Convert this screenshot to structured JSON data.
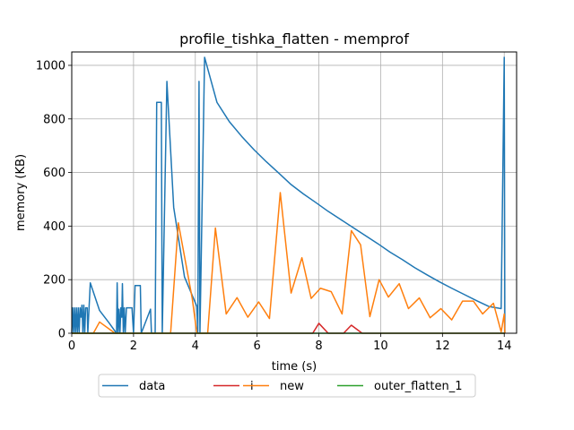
{
  "chart_data": {
    "type": "line",
    "title": "profile_tishka_flatten - memprof",
    "xlabel": "time (s)",
    "ylabel": "memory (KB)",
    "xlim": [
      0,
      14.4
    ],
    "ylim": [
      0,
      1050
    ],
    "xticks": [
      0,
      2,
      4,
      6,
      8,
      10,
      12,
      14
    ],
    "yticks": [
      0,
      200,
      400,
      600,
      800,
      1000
    ],
    "grid": true,
    "legend": "below-center",
    "series": [
      {
        "name": "data",
        "color": "#1f77b4",
        "points": [
          [
            0.0,
            0
          ],
          [
            0.03,
            95
          ],
          [
            0.06,
            0
          ],
          [
            0.09,
            95
          ],
          [
            0.12,
            0
          ],
          [
            0.15,
            95
          ],
          [
            0.18,
            0
          ],
          [
            0.21,
            95
          ],
          [
            0.24,
            0
          ],
          [
            0.27,
            95
          ],
          [
            0.3,
            60
          ],
          [
            0.33,
            105
          ],
          [
            0.36,
            0
          ],
          [
            0.39,
            105
          ],
          [
            0.42,
            0
          ],
          [
            0.45,
            95
          ],
          [
            0.5,
            95
          ],
          [
            0.52,
            0
          ],
          [
            0.6,
            188
          ],
          [
            0.9,
            85
          ],
          [
            1.2,
            40
          ],
          [
            1.45,
            0
          ],
          [
            1.47,
            188
          ],
          [
            1.5,
            0
          ],
          [
            1.53,
            90
          ],
          [
            1.56,
            0
          ],
          [
            1.59,
            95
          ],
          [
            1.62,
            60
          ],
          [
            1.64,
            185
          ],
          [
            1.67,
            0
          ],
          [
            1.7,
            95
          ],
          [
            1.73,
            0
          ],
          [
            1.77,
            95
          ],
          [
            1.95,
            95
          ],
          [
            2.0,
            0
          ],
          [
            2.05,
            178
          ],
          [
            2.22,
            178
          ],
          [
            2.25,
            0
          ],
          [
            2.55,
            90
          ],
          [
            2.58,
            0
          ],
          [
            2.7,
            0
          ],
          [
            2.75,
            862
          ],
          [
            2.9,
            862
          ],
          [
            2.93,
            0
          ],
          [
            3.08,
            940
          ],
          [
            3.3,
            470
          ],
          [
            3.65,
            210
          ],
          [
            4.05,
            100
          ],
          [
            4.08,
            0
          ],
          [
            4.12,
            940
          ],
          [
            4.15,
            0
          ],
          [
            4.3,
            1030
          ],
          [
            4.7,
            862
          ],
          [
            5.1,
            790
          ],
          [
            5.5,
            735
          ],
          [
            5.9,
            685
          ],
          [
            6.3,
            640
          ],
          [
            6.7,
            598
          ],
          [
            7.1,
            555
          ],
          [
            7.5,
            520
          ],
          [
            7.9,
            488
          ],
          [
            8.3,
            455
          ],
          [
            8.7,
            425
          ],
          [
            9.1,
            395
          ],
          [
            9.5,
            365
          ],
          [
            9.9,
            335
          ],
          [
            10.3,
            303
          ],
          [
            10.7,
            275
          ],
          [
            11.1,
            245
          ],
          [
            11.5,
            218
          ],
          [
            11.9,
            192
          ],
          [
            12.3,
            168
          ],
          [
            12.7,
            145
          ],
          [
            13.1,
            122
          ],
          [
            13.5,
            100
          ],
          [
            13.9,
            92
          ],
          [
            14.0,
            1030
          ],
          [
            14.02,
            0
          ]
        ]
      },
      {
        "name": "i",
        "color": "#d62728",
        "points": [
          [
            0.0,
            0
          ],
          [
            7.8,
            0
          ],
          [
            8.0,
            37
          ],
          [
            8.3,
            0
          ],
          [
            8.8,
            0
          ],
          [
            9.05,
            30
          ],
          [
            9.4,
            0
          ],
          [
            14.02,
            0
          ]
        ]
      },
      {
        "name": "new",
        "color": "#ff7f0e",
        "points": [
          [
            0.0,
            0
          ],
          [
            0.7,
            0
          ],
          [
            0.9,
            42
          ],
          [
            1.4,
            0
          ],
          [
            3.2,
            0
          ],
          [
            3.45,
            412
          ],
          [
            3.9,
            130
          ],
          [
            4.05,
            0
          ],
          [
            4.4,
            0
          ],
          [
            4.65,
            393
          ],
          [
            5.0,
            72
          ],
          [
            5.35,
            133
          ],
          [
            5.7,
            60
          ],
          [
            6.05,
            117
          ],
          [
            6.4,
            55
          ],
          [
            6.75,
            525
          ],
          [
            7.1,
            150
          ],
          [
            7.45,
            282
          ],
          [
            7.75,
            130
          ],
          [
            8.05,
            168
          ],
          [
            8.4,
            155
          ],
          [
            8.75,
            72
          ],
          [
            9.05,
            383
          ],
          [
            9.35,
            330
          ],
          [
            9.65,
            62
          ],
          [
            9.95,
            200
          ],
          [
            10.25,
            135
          ],
          [
            10.6,
            185
          ],
          [
            10.9,
            92
          ],
          [
            11.25,
            132
          ],
          [
            11.6,
            58
          ],
          [
            11.95,
            92
          ],
          [
            12.3,
            50
          ],
          [
            12.65,
            120
          ],
          [
            13.0,
            120
          ],
          [
            13.3,
            72
          ],
          [
            13.65,
            112
          ],
          [
            13.9,
            5
          ],
          [
            14.0,
            72
          ],
          [
            14.02,
            0
          ]
        ]
      },
      {
        "name": "outer_flatten_1",
        "color": "#2ca02c",
        "points": [
          [
            0.0,
            0
          ],
          [
            14.02,
            0
          ]
        ]
      }
    ]
  }
}
